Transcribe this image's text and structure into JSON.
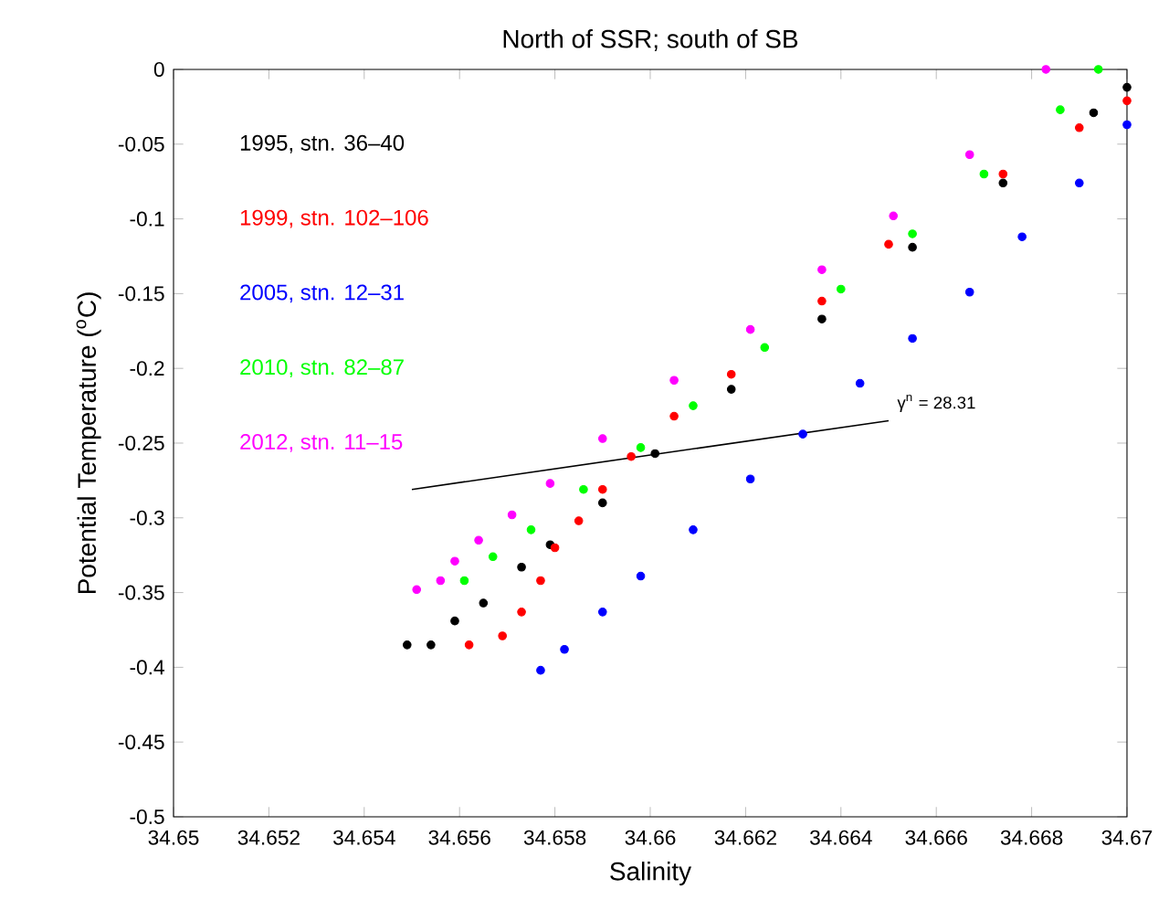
{
  "chart_data": {
    "type": "scatter",
    "title": "North of SSR; south of SB",
    "xlabel": "Salinity",
    "ylabel": "Potential Temperature ($^{o}$C)",
    "xlim": [
      34.65,
      34.67
    ],
    "ylim": [
      -0.5,
      0
    ],
    "xticks": [
      34.65,
      34.652,
      34.654,
      34.656,
      34.658,
      34.66,
      34.662,
      34.664,
      34.666,
      34.668,
      34.67
    ],
    "yticks": [
      -0.5,
      -0.45,
      -0.4,
      -0.35,
      -0.3,
      -0.25,
      -0.2,
      -0.15,
      -0.1,
      -0.05,
      0
    ],
    "legend": "top left",
    "series": [
      {
        "name": "1995, stn. 36–40",
        "color": "#000000",
        "x": [
          34.6549,
          34.6554,
          34.6559,
          34.6565,
          34.6573,
          34.6579,
          34.659,
          34.6601,
          34.6617,
          34.6636,
          34.6655,
          34.6674,
          34.6693,
          34.67
        ],
        "values": [
          -0.385,
          -0.385,
          -0.369,
          -0.357,
          -0.333,
          -0.318,
          -0.29,
          -0.257,
          -0.214,
          -0.167,
          -0.119,
          -0.076,
          -0.029,
          -0.012
        ]
      },
      {
        "name": "1999, stn. 102–106",
        "color": "#ff0000",
        "x": [
          34.6562,
          34.6569,
          34.6573,
          34.6577,
          34.658,
          34.6585,
          34.659,
          34.6596,
          34.6605,
          34.6617,
          34.6636,
          34.665,
          34.6674,
          34.669,
          34.67
        ],
        "values": [
          -0.385,
          -0.379,
          -0.363,
          -0.342,
          -0.32,
          -0.302,
          -0.281,
          -0.259,
          -0.232,
          -0.204,
          -0.155,
          -0.117,
          -0.07,
          -0.039,
          -0.021
        ]
      },
      {
        "name": "2005, stn. 12–31",
        "color": "#0000ff",
        "x": [
          34.6577,
          34.6582,
          34.659,
          34.6598,
          34.6609,
          34.6621,
          34.6632,
          34.6644,
          34.6655,
          34.6667,
          34.6678,
          34.669,
          34.67
        ],
        "values": [
          -0.402,
          -0.388,
          -0.363,
          -0.339,
          -0.308,
          -0.274,
          -0.244,
          -0.21,
          -0.18,
          -0.149,
          -0.112,
          -0.076,
          -0.037
        ]
      },
      {
        "name": "2010, stn. 82–87",
        "color": "#00ff00",
        "x": [
          34.6561,
          34.6567,
          34.6575,
          34.6586,
          34.6598,
          34.6609,
          34.6624,
          34.664,
          34.6655,
          34.667,
          34.6686,
          34.6694
        ],
        "values": [
          -0.342,
          -0.326,
          -0.308,
          -0.281,
          -0.253,
          -0.225,
          -0.186,
          -0.147,
          -0.11,
          -0.07,
          -0.027,
          0
        ]
      },
      {
        "name": "2012, stn. 11–15",
        "color": "#ff00ff",
        "x": [
          34.6551,
          34.6556,
          34.6559,
          34.6564,
          34.6571,
          34.6579,
          34.659,
          34.6605,
          34.6621,
          34.6636,
          34.6651,
          34.6667,
          34.6683
        ],
        "values": [
          -0.348,
          -0.342,
          -0.329,
          -0.315,
          -0.298,
          -0.277,
          -0.247,
          -0.208,
          -0.174,
          -0.134,
          -0.098,
          -0.057,
          0
        ]
      },
      {
        "type": "line",
        "marker": "none",
        "color": "#000000",
        "x": [
          34.655,
          34.665
        ],
        "values": [
          -0.281,
          -0.235
        ]
      }
    ],
    "annotations": [
      "γ$^{n}$ = 28.31"
    ]
  }
}
